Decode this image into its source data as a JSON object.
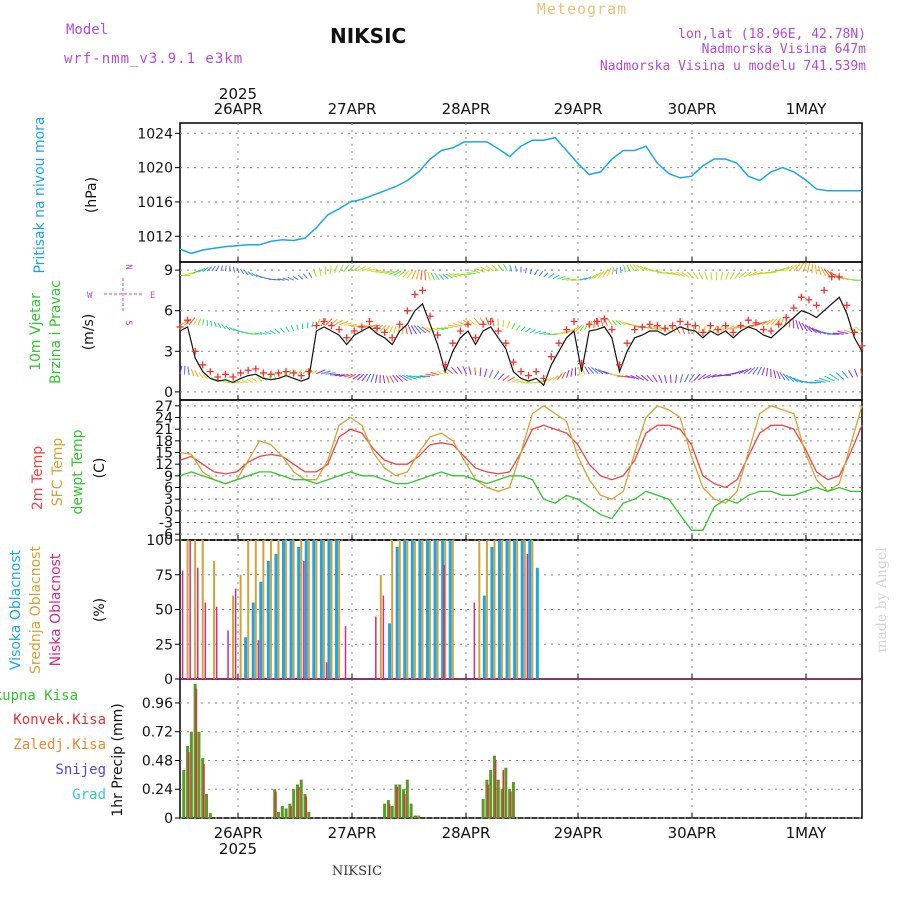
{
  "header": {
    "model_label": "Model",
    "model_name": "wrf-nmm_v3.9.1 e3km",
    "title": "NIKSIC",
    "meteogram": "Meteogram",
    "lonlat": "lon,lat (18.96E, 42.78N)",
    "altitude": "Nadmorska Visina 647m",
    "model_altitude": "Nadmorska Visina u modelu 741.539m"
  },
  "footer": {
    "station": "NIKSIC",
    "credit": "made by Angel"
  },
  "colors": {
    "pressure": "#1ea5e6",
    "temp2m": "#ee4444",
    "sfctemp": "#d4a237",
    "dewpt": "#33c433",
    "high": "#1ea5e6",
    "mid": "#d4a237",
    "low": "#d42a8a",
    "total": "#5a9a2a",
    "conv": "#dd3333",
    "grid": "#999999",
    "purple": "#b04cd0"
  },
  "time_axis": {
    "days": [
      "26APR",
      "27APR",
      "28APR",
      "29APR",
      "30APR",
      "1MAY"
    ],
    "year": "2025"
  },
  "chart_data": [
    {
      "type": "line",
      "title": "Pritisak na nivou mora",
      "ylabel": "(hPa)",
      "yticks": [
        "1012",
        "1016",
        "1020",
        "1024"
      ],
      "ylim": [
        1009,
        1025.2
      ],
      "x": [
        0,
        3,
        6,
        9,
        12,
        15,
        18,
        21,
        24,
        27,
        30,
        33,
        36,
        39,
        42,
        45,
        48,
        51,
        54,
        57,
        60,
        63,
        66,
        69,
        72,
        75,
        78,
        81,
        84,
        87,
        90,
        93,
        96,
        99,
        102,
        105,
        108,
        111,
        114,
        117,
        120,
        123,
        126,
        129,
        132,
        135,
        138,
        141,
        144,
        147,
        150,
        153,
        156,
        159,
        162,
        165,
        168,
        171,
        174,
        177,
        180
      ],
      "values": [
        1010.5,
        1010.0,
        1010.4,
        1010.6,
        1010.8,
        1010.9,
        1011.0,
        1011.0,
        1011.4,
        1011.6,
        1011.5,
        1011.8,
        1013.0,
        1014.5,
        1015.2,
        1016.0,
        1016.3,
        1016.8,
        1017.3,
        1017.8,
        1018.5,
        1019.5,
        1021.0,
        1022.0,
        1022.3,
        1023.0,
        1023.0,
        1023.0,
        1022.2,
        1021.3,
        1022.5,
        1023.2,
        1023.2,
        1023.5,
        1022.0,
        1020.5,
        1019.2,
        1019.5,
        1021.0,
        1022.0,
        1022.0,
        1022.5,
        1020.5,
        1019.3,
        1018.8,
        1019.0,
        1020.2,
        1021.0,
        1021.0,
        1020.5,
        1019.0,
        1018.5,
        1019.5,
        1020.0,
        1019.5,
        1018.6,
        1017.5,
        1017.3,
        1017.3,
        1017.3,
        1017.3
      ]
    },
    {
      "type": "line",
      "title": "10m Vjetar Brzina i Pravac",
      "ylabel": "(m/s)",
      "compass_labels": {
        "n": "N",
        "s": "S",
        "e": "E",
        "w": "W"
      },
      "yticks": [
        "0",
        "3",
        "6",
        "9"
      ],
      "ylim": [
        -0.6,
        9.6
      ],
      "x": [
        0,
        2,
        4,
        6,
        8,
        10,
        12,
        14,
        16,
        18,
        20,
        22,
        24,
        26,
        28,
        30,
        32,
        34,
        36,
        38,
        40,
        42,
        44,
        46,
        48,
        50,
        52,
        54,
        56,
        58,
        60,
        62,
        64,
        66,
        68,
        70,
        72,
        74,
        76,
        78,
        80,
        82,
        84,
        86,
        88,
        90,
        92,
        94,
        96,
        98,
        100,
        102,
        104,
        106,
        108,
        110,
        112,
        114,
        116,
        118,
        120,
        122,
        124,
        126,
        128,
        130,
        132,
        134,
        136,
        138,
        140,
        142,
        144,
        146,
        148,
        150,
        152,
        154,
        156,
        158,
        160,
        162,
        164,
        166,
        168,
        170,
        172,
        174,
        176,
        178,
        180
      ],
      "values": [
        4.5,
        4.8,
        2.5,
        1.5,
        1.0,
        0.8,
        0.9,
        0.7,
        1.0,
        1.2,
        1.3,
        1.0,
        0.9,
        1.0,
        1.2,
        1.0,
        0.8,
        1.0,
        4.5,
        4.8,
        4.5,
        4.2,
        3.5,
        4.2,
        4.5,
        4.8,
        4.3,
        4.0,
        3.5,
        4.5,
        5.0,
        6.0,
        6.5,
        5.0,
        3.5,
        1.5,
        3.0,
        4.0,
        4.5,
        3.5,
        4.5,
        4.8,
        4.0,
        3.2,
        1.5,
        1.0,
        0.8,
        1.0,
        0.5,
        2.0,
        3.0,
        4.0,
        4.5,
        1.5,
        4.5,
        4.6,
        4.8,
        4.0,
        1.5,
        3.0,
        4.0,
        4.2,
        4.5,
        4.5,
        4.2,
        4.5,
        4.8,
        4.6,
        4.5,
        4.0,
        4.5,
        4.2,
        4.5,
        4.0,
        4.5,
        4.8,
        4.6,
        4.2,
        4.0,
        4.5,
        5.0,
        5.5,
        6.0,
        5.8,
        5.5,
        6.0,
        6.5,
        7.0,
        5.8,
        4.0,
        3.0
      ],
      "gust_values": [
        4.8,
        5.3,
        3.0,
        2.0,
        1.5,
        1.1,
        1.3,
        1.1,
        1.4,
        1.6,
        1.7,
        1.4,
        1.3,
        1.4,
        1.5,
        1.4,
        1.2,
        1.5,
        4.9,
        5.2,
        4.9,
        4.6,
        4.0,
        4.5,
        4.8,
        5.2,
        4.7,
        4.4,
        4.0,
        5.0,
        6.0,
        7.2,
        7.5,
        5.6,
        4.2,
        2.0,
        3.6,
        4.5,
        5.0,
        4.0,
        5.0,
        5.2,
        4.5,
        3.6,
        2.2,
        1.5,
        1.2,
        1.5,
        1.0,
        2.6,
        3.6,
        4.6,
        5.2,
        2.1,
        5.0,
        5.2,
        5.4,
        4.6,
        2.0,
        3.6,
        4.6,
        4.8,
        5.0,
        4.9,
        4.7,
        4.9,
        5.2,
        5.0,
        4.9,
        4.4,
        4.9,
        4.6,
        4.9,
        4.4,
        4.9,
        5.3,
        5.1,
        4.6,
        4.5,
        5.0,
        5.5,
        6.2,
        7.0,
        6.8,
        6.4,
        7.5,
        8.5,
        8.5,
        6.4,
        4.4,
        3.4
      ]
    },
    {
      "type": "line",
      "title": "2m Temp / SFC Temp / dewpt Temp",
      "ylabel": "(C)",
      "yticks": [
        "-6",
        "-3",
        "0",
        "3",
        "6",
        "9",
        "12",
        "15",
        "18",
        "21",
        "24",
        "27"
      ],
      "ylim": [
        -7.5,
        28.5
      ],
      "x": [
        0,
        3,
        6,
        9,
        12,
        15,
        18,
        21,
        24,
        27,
        30,
        33,
        36,
        39,
        42,
        45,
        48,
        51,
        54,
        57,
        60,
        63,
        66,
        69,
        72,
        75,
        78,
        81,
        84,
        87,
        90,
        93,
        96,
        99,
        102,
        105,
        108,
        111,
        114,
        117,
        120,
        123,
        126,
        129,
        132,
        135,
        138,
        141,
        144,
        147,
        150,
        153,
        156,
        159,
        162,
        165,
        168,
        171,
        174,
        177,
        180
      ],
      "series": [
        {
          "name": "2m Temp",
          "values": [
            13,
            14,
            12,
            10,
            9.5,
            10,
            12.5,
            14,
            14.5,
            14,
            12,
            10,
            10,
            12,
            19,
            21,
            20,
            16,
            13,
            12,
            12,
            14,
            17,
            17.5,
            17,
            14,
            11,
            10,
            9.5,
            10,
            15,
            21,
            22,
            21,
            20,
            17,
            12,
            9,
            8,
            9,
            13,
            20,
            22,
            22,
            21,
            17,
            9,
            7,
            6,
            8,
            14,
            20,
            22,
            22,
            21,
            16,
            10,
            8,
            9,
            15,
            22
          ]
        },
        {
          "name": "SFC Temp",
          "values": [
            15,
            14.5,
            10,
            8,
            7,
            8,
            13,
            18,
            17,
            14,
            10,
            8,
            8,
            13,
            22,
            24,
            22,
            15,
            11,
            9,
            10,
            15,
            19,
            20,
            18,
            13,
            8,
            6,
            5,
            6,
            15,
            25,
            27,
            25,
            23,
            14,
            8,
            4,
            3,
            5,
            15,
            24,
            27,
            26,
            24,
            14,
            6,
            3,
            2,
            5,
            15,
            25,
            27,
            26,
            25,
            15,
            8,
            5,
            7,
            17,
            27
          ]
        },
        {
          "name": "dewpt Temp",
          "values": [
            9,
            10,
            9,
            8,
            7,
            8,
            9,
            10,
            10,
            9,
            8,
            8,
            7,
            8,
            9,
            10,
            9,
            9,
            8,
            7,
            7,
            8,
            9,
            10,
            9,
            9,
            8,
            7,
            8,
            9,
            9,
            8,
            3,
            2,
            4,
            3,
            1,
            -1,
            -2,
            2,
            3,
            5,
            4,
            3,
            -1,
            -5,
            -5,
            1,
            3,
            2,
            4,
            5,
            5,
            4,
            4,
            5,
            6,
            5,
            6,
            5,
            5
          ]
        }
      ]
    },
    {
      "type": "bar",
      "title": "Visoka / Srednja / Niska Oblacnost",
      "ylabel": "(%)",
      "yticks": [
        "0",
        "25",
        "50",
        "75",
        "100"
      ],
      "ylim": [
        0,
        100
      ],
      "series": [
        {
          "name": "Visoka Oblacnost",
          "x": [
            17,
            19,
            21,
            23,
            25,
            27,
            29,
            31,
            33,
            35,
            37,
            39,
            41,
            55,
            57,
            59,
            61,
            63,
            65,
            67,
            69,
            71,
            80,
            82,
            84,
            86,
            88,
            90,
            92,
            94
          ],
          "values": [
            30,
            55,
            70,
            85,
            90,
            100,
            100,
            95,
            100,
            100,
            100,
            100,
            100,
            40,
            95,
            100,
            100,
            100,
            100,
            100,
            100,
            100,
            60,
            95,
            100,
            100,
            100,
            100,
            100,
            80
          ]
        },
        {
          "name": "Srednja Oblacnost",
          "x": [
            2,
            4,
            6,
            9,
            14,
            16,
            18,
            20,
            22,
            24,
            26,
            28,
            30,
            32,
            34,
            36,
            38,
            40,
            42,
            53,
            56,
            58,
            60,
            62,
            64,
            66,
            68,
            70,
            72,
            79,
            81,
            83,
            85,
            87,
            89,
            91,
            93
          ],
          "values": [
            100,
            100,
            100,
            85,
            60,
            75,
            100,
            100,
            100,
            100,
            100,
            100,
            100,
            100,
            100,
            100,
            100,
            100,
            100,
            75,
            100,
            100,
            100,
            100,
            100,
            100,
            100,
            100,
            100,
            100,
            100,
            100,
            100,
            100,
            100,
            100,
            100
          ]
        },
        {
          "name": "Niska Oblacnost",
          "x": [
            1,
            3,
            5,
            7,
            10,
            13,
            15,
            21,
            33,
            39,
            44,
            52,
            54,
            70,
            78,
            92
          ],
          "values": [
            78,
            100,
            80,
            55,
            52,
            35,
            65,
            28,
            85,
            12,
            38,
            45,
            60,
            82,
            55,
            90
          ]
        }
      ]
    },
    {
      "type": "bar",
      "title": "1hr Precip",
      "ylabel": "1hr Precip (mm)",
      "legend": [
        "Ukupna Kisa",
        "Konvek.Kisa",
        "Zaledj.Kisa",
        "Snijeg",
        "Grad"
      ],
      "yticks": [
        "0",
        "0.24",
        "0.48",
        "0.72",
        "0.96"
      ],
      "ylim": [
        0,
        1.16
      ],
      "series": [
        {
          "name": "Ukupna Kisa",
          "x": [
            1,
            2,
            3,
            4,
            5,
            6,
            7,
            8,
            25,
            26,
            27,
            28,
            29,
            30,
            31,
            32,
            33,
            34,
            54,
            55,
            56,
            57,
            58,
            59,
            60,
            61,
            62,
            63,
            80,
            81,
            82,
            83,
            84,
            85,
            86,
            87,
            88
          ],
          "values": [
            0.4,
            0.6,
            0.72,
            1.12,
            0.72,
            0.5,
            0.2,
            0.04,
            0.24,
            0.05,
            0.1,
            0.08,
            0.12,
            0.24,
            0.28,
            0.32,
            0.2,
            0.05,
            0.12,
            0.15,
            0.1,
            0.28,
            0.28,
            0.24,
            0.32,
            0.12,
            0.02,
            0.02,
            0.16,
            0.32,
            0.4,
            0.52,
            0.32,
            0.24,
            0.42,
            0.24,
            0.3
          ]
        },
        {
          "name": "Konvek.Kisa",
          "x": [
            2,
            4,
            6,
            25,
            29,
            31,
            33,
            55,
            57,
            59,
            62,
            81,
            83,
            85,
            87
          ],
          "values": [
            0.55,
            1.08,
            0.45,
            0.22,
            0.1,
            0.26,
            0.18,
            0.12,
            0.26,
            0.2,
            0.02,
            0.28,
            0.48,
            0.4,
            0.22
          ]
        }
      ]
    }
  ]
}
